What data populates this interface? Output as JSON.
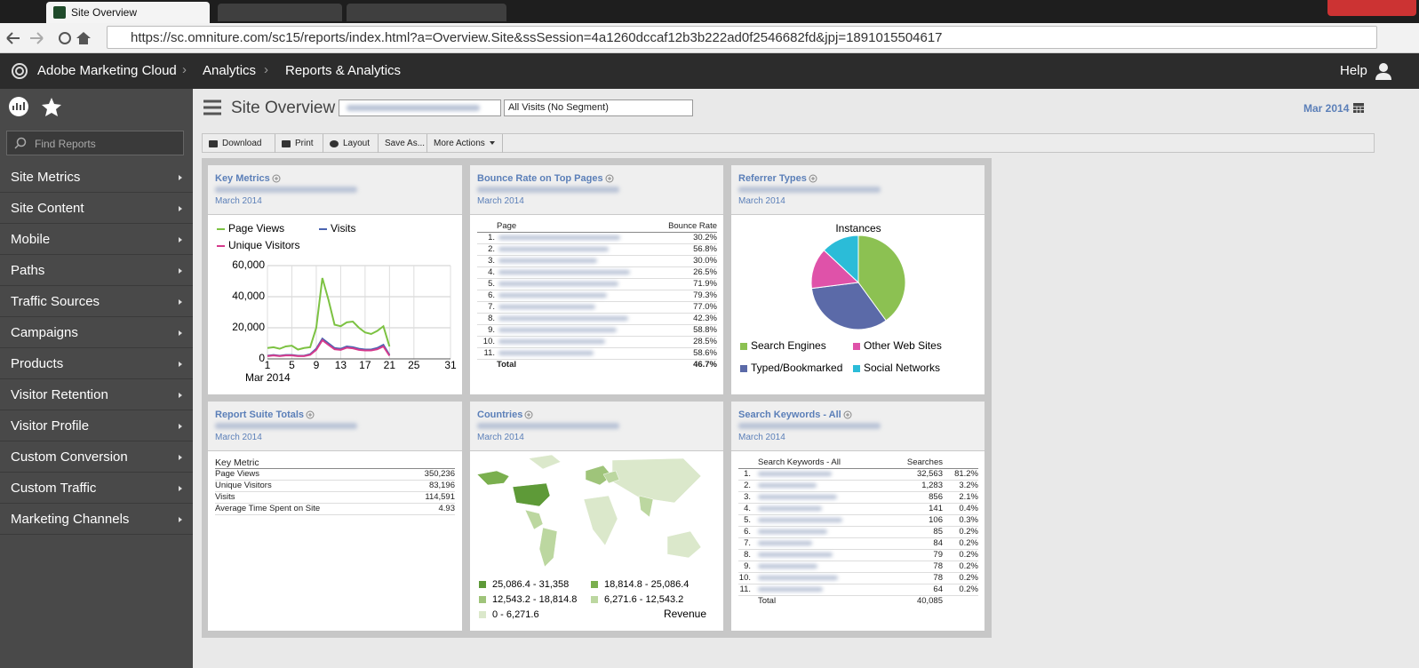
{
  "browser": {
    "tab": "Site Overview",
    "url": "https://sc.omniture.com/sc15/reports/index.html?a=Overview.Site&ssSession=4a1260dccaf12b3b222ad0f2546682fd&jpj=1891015504617"
  },
  "topbar": {
    "brand": "Adobe Marketing Cloud",
    "breadcrumbs": [
      "Analytics",
      "Reports & Analytics"
    ],
    "help": "Help"
  },
  "sidebar": {
    "search_placeholder": "Find Reports",
    "items": [
      "Site Metrics",
      "Site Content",
      "Mobile",
      "Paths",
      "Traffic Sources",
      "Campaigns",
      "Products",
      "Visitor Retention",
      "Visitor Profile",
      "Custom Conversion",
      "Custom Traffic",
      "Marketing Channels"
    ]
  },
  "header": {
    "title": "Site Overview",
    "segment": "All Visits (No Segment)",
    "date": "Mar 2014"
  },
  "toolbar": [
    "Download",
    "Print",
    "Layout",
    "Save As...",
    "More Actions"
  ],
  "panels": {
    "key_metrics": {
      "title": "Key Metrics",
      "period": "March 2014",
      "chart_data": {
        "type": "line",
        "x_label": "Mar 2014",
        "x": [
          1,
          2,
          3,
          4,
          5,
          6,
          7,
          8,
          9,
          10,
          11,
          12,
          13,
          14,
          15,
          16,
          17,
          18,
          19,
          20,
          21
        ],
        "series": [
          {
            "name": "Page Views",
            "color": "#7cc242",
            "values": [
              7000,
              7500,
              6500,
              8000,
              8500,
              6000,
              7000,
              7500,
              20000,
              52000,
              38000,
              22000,
              21000,
              23500,
              24000,
              20000,
              17000,
              16000,
              18000,
              21000,
              8000
            ]
          },
          {
            "name": "Visits",
            "color": "#4a63b0",
            "values": [
              2000,
              2500,
              2000,
              2500,
              2500,
              2000,
              2000,
              3000,
              6500,
              13000,
              10000,
              7000,
              6500,
              8000,
              7500,
              6500,
              6000,
              6000,
              7000,
              9000,
              2500
            ]
          },
          {
            "name": "Unique Visitors",
            "color": "#d63a8c",
            "values": [
              1800,
              2200,
              1800,
              2200,
              2200,
              1800,
              1800,
              2600,
              5800,
              12000,
              9000,
              6200,
              5800,
              7200,
              6800,
              5800,
              5400,
              5400,
              6200,
              8000,
              2000
            ]
          }
        ],
        "xlim": [
          1,
          31
        ],
        "xticks": [
          1,
          5,
          9,
          13,
          17,
          21,
          25,
          31
        ],
        "ylim": [
          0,
          60000
        ],
        "yticks": [
          0,
          {
            "value": 20000,
            "label": "20,000"
          },
          {
            "value": 40000,
            "label": "40,000"
          },
          {
            "value": 60000,
            "label": "60,000"
          }
        ],
        "grid": true
      }
    },
    "bounce_rate": {
      "title": "Bounce Rate on Top Pages",
      "period": "March 2014",
      "columns": [
        "Page",
        "Bounce Rate"
      ],
      "rows": [
        [
          "1.",
          "30.2%"
        ],
        [
          "2.",
          "56.8%"
        ],
        [
          "3.",
          "30.0%"
        ],
        [
          "4.",
          "26.5%"
        ],
        [
          "5.",
          "71.9%"
        ],
        [
          "6.",
          "79.3%"
        ],
        [
          "7.",
          "77.0%"
        ],
        [
          "8.",
          "42.3%"
        ],
        [
          "9.",
          "58.8%"
        ],
        [
          "10.",
          "28.5%"
        ],
        [
          "11.",
          "58.6%"
        ]
      ],
      "total": [
        "Total",
        "46.7%"
      ]
    },
    "referrer_types": {
      "title": "Referrer Types",
      "period": "March 2014",
      "chart_data": {
        "type": "pie",
        "title": "Instances",
        "categories": [
          "Search Engines",
          "Typed/Bookmarked",
          "Other Web Sites",
          "Social Networks"
        ],
        "values": [
          40,
          33,
          14,
          13
        ],
        "colors": [
          "#8cc152",
          "#5b6aa8",
          "#df52a9",
          "#2bbcd8"
        ]
      }
    },
    "report_suite_totals": {
      "title": "Report Suite Totals",
      "period": "March 2014",
      "columns": [
        "Key Metric"
      ],
      "rows": [
        [
          "Page Views",
          "350,236"
        ],
        [
          "Unique Visitors",
          "83,196"
        ],
        [
          "Visits",
          "114,591"
        ],
        [
          "Average Time Spent on Site",
          "4.93"
        ]
      ]
    },
    "countries": {
      "title": "Countries",
      "period": "March 2014",
      "legend": [
        {
          "label": "25,086.4 - 31,358",
          "color": "#5e9a38"
        },
        {
          "label": "18,814.8 - 25,086.4",
          "color": "#7aaf4e"
        },
        {
          "label": "12,543.2 - 18,814.8",
          "color": "#9fc47a"
        },
        {
          "label": "6,271.6 - 12,543.2",
          "color": "#bcd7a0"
        },
        {
          "label": "0 - 6,271.6",
          "color": "#dbe8cb"
        }
      ],
      "metric": "Revenue"
    },
    "search_keywords": {
      "title": "Search Keywords - All",
      "period": "March 2014",
      "columns": [
        "Search Keywords - All",
        "Searches"
      ],
      "rows": [
        [
          "1.",
          "32,563",
          "81.2%"
        ],
        [
          "2.",
          "1,283",
          "3.2%"
        ],
        [
          "3.",
          "856",
          "2.1%"
        ],
        [
          "4.",
          "141",
          "0.4%"
        ],
        [
          "5.",
          "106",
          "0.3%"
        ],
        [
          "6.",
          "85",
          "0.2%"
        ],
        [
          "7.",
          "84",
          "0.2%"
        ],
        [
          "8.",
          "79",
          "0.2%"
        ],
        [
          "9.",
          "78",
          "0.2%"
        ],
        [
          "10.",
          "78",
          "0.2%"
        ],
        [
          "11.",
          "64",
          "0.2%"
        ]
      ],
      "total": [
        "Total",
        "40,085"
      ]
    }
  }
}
